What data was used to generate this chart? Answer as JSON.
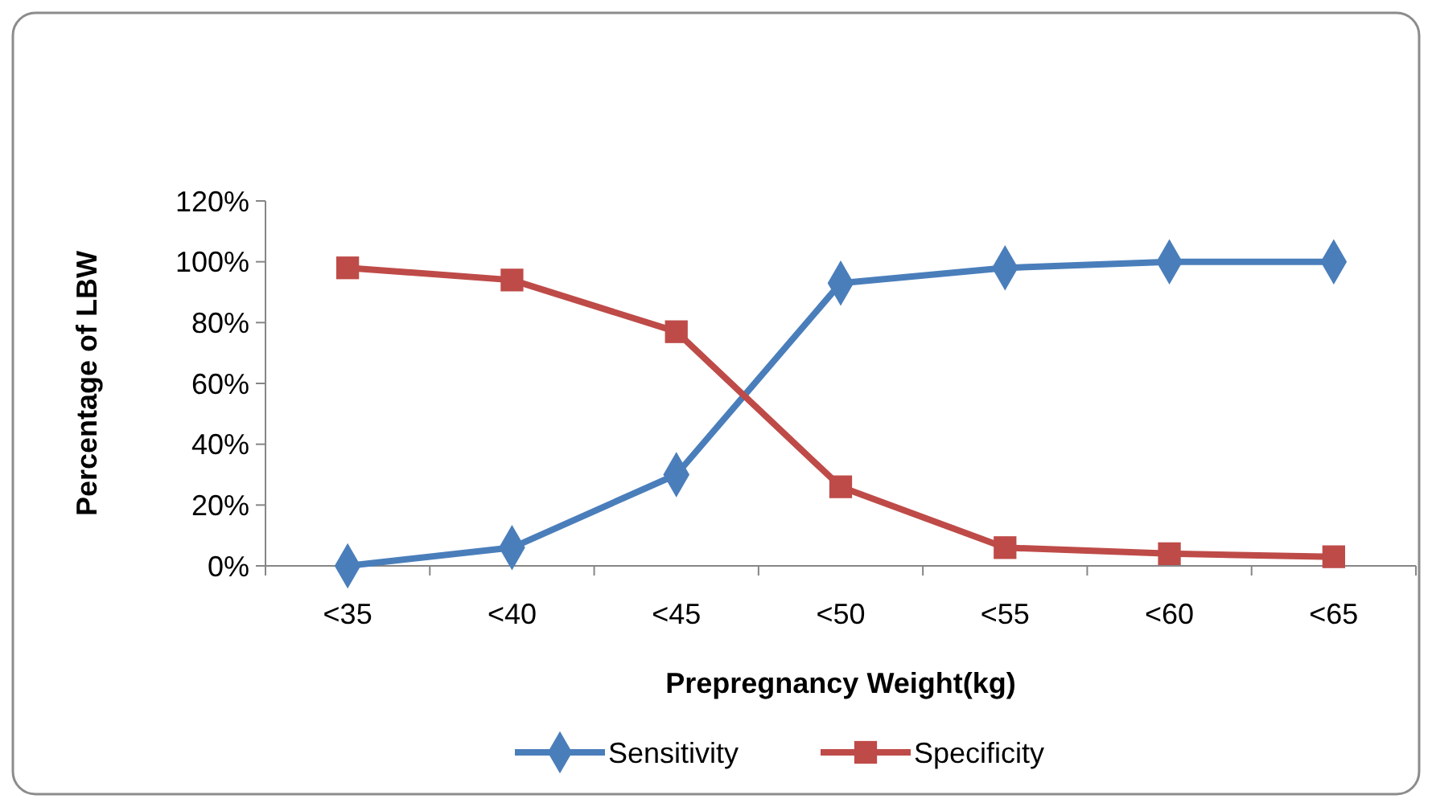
{
  "chart_data": {
    "type": "line",
    "xlabel": "Prepregnancy  Weight(kg)",
    "ylabel": "Percentage of LBW",
    "categories": [
      "<35",
      "<40",
      "<45",
      "<50",
      "<55",
      "<60",
      "<65"
    ],
    "series": [
      {
        "name": "Sensitivity",
        "color": "#4a7ebb",
        "marker": "diamond",
        "values": [
          0,
          6,
          30,
          93,
          98,
          100,
          100
        ]
      },
      {
        "name": "Specificity",
        "color": "#be4b48",
        "marker": "square",
        "values": [
          98,
          94,
          77,
          26,
          6,
          4,
          3
        ]
      }
    ],
    "ylim": [
      0,
      120
    ],
    "yticks": [
      {
        "value": 0,
        "label": "0%"
      },
      {
        "value": 20,
        "label": "20%"
      },
      {
        "value": 40,
        "label": "40%"
      },
      {
        "value": 60,
        "label": "60%"
      },
      {
        "value": 80,
        "label": "80%"
      },
      {
        "value": 100,
        "label": "100%"
      },
      {
        "value": 120,
        "label": "120%"
      }
    ],
    "legend": "bottom",
    "grid": false,
    "line_style": "solid"
  }
}
